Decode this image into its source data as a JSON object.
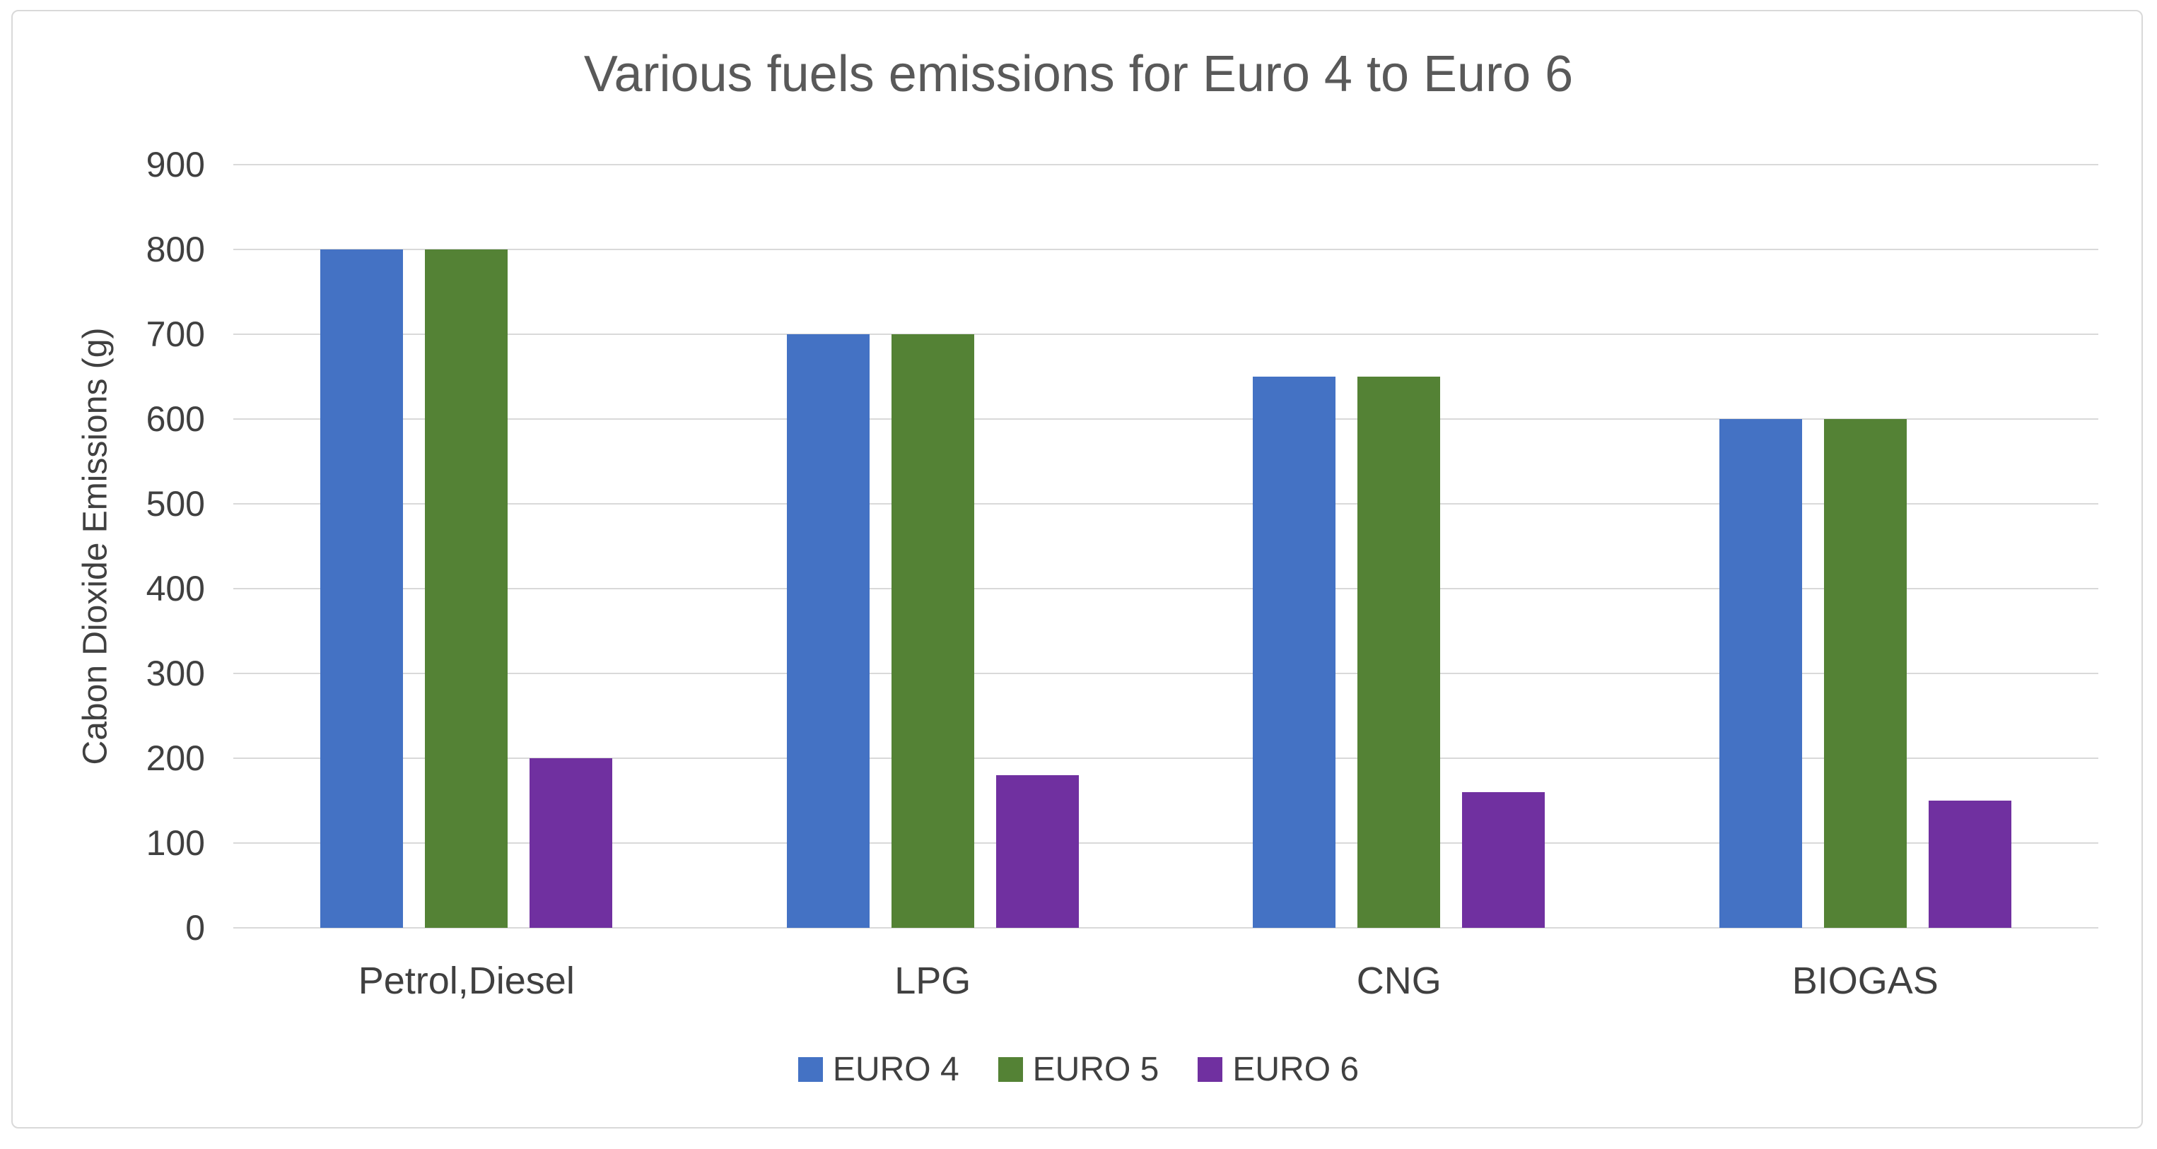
{
  "chart_data": {
    "type": "bar",
    "title": "Various fuels emissions for Euro 4 to Euro 6",
    "xlabel": "",
    "ylabel": "Cabon Dioxide Emissions (g)",
    "categories": [
      "Petrol,Diesel",
      "LPG",
      "CNG",
      "BIOGAS"
    ],
    "series": [
      {
        "name": "EURO 4",
        "color": "#4472C4",
        "values": [
          800,
          700,
          650,
          600
        ]
      },
      {
        "name": "EURO 5",
        "color": "#548235",
        "values": [
          800,
          700,
          650,
          600
        ]
      },
      {
        "name": "EURO 6",
        "color": "#7030A0",
        "values": [
          200,
          180,
          160,
          150
        ]
      }
    ],
    "ylim": [
      0,
      900
    ],
    "yticks": [
      0,
      100,
      200,
      300,
      400,
      500,
      600,
      700,
      800,
      900
    ],
    "grid": true,
    "legend_position": "bottom"
  },
  "colors": {
    "text": "#404040",
    "title_text": "#595959",
    "gridline": "#D9D9D9",
    "frame_border": "#D9D9D9",
    "background": "#FFFFFF"
  }
}
